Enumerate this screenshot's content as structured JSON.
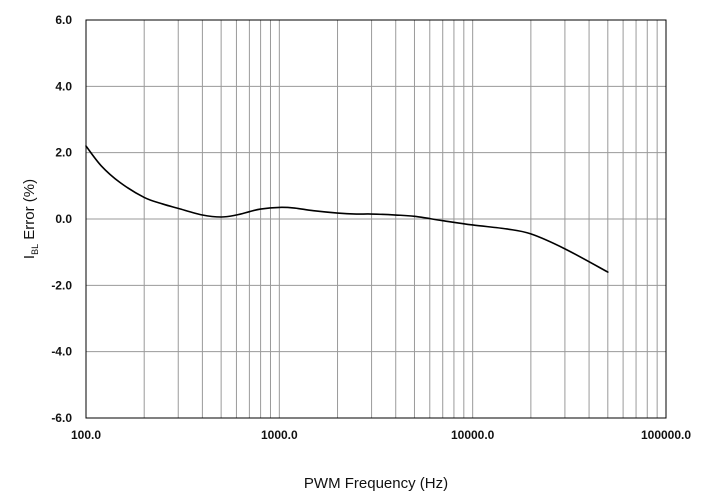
{
  "chart_data": {
    "type": "line",
    "title": "",
    "xlabel": "PWM Frequency (Hz)",
    "ylabel": {
      "symbol": "I",
      "subscript": "BL",
      "text": " Error (%)"
    },
    "x_scale": "log",
    "xlim": [
      100,
      100000
    ],
    "ylim": [
      -6,
      6
    ],
    "x_ticks": [
      100,
      1000,
      10000,
      100000
    ],
    "x_tick_labels": [
      "100.0",
      "1000.0",
      "10000.0",
      "100000.0"
    ],
    "y_ticks": [
      6,
      4,
      2,
      0,
      -2,
      -4,
      -6
    ],
    "y_tick_labels": [
      "6.0",
      "4.0",
      "2.0",
      "0.0",
      "-2.0",
      "-4.0",
      "-6.0"
    ],
    "grid": true,
    "legend": false,
    "colors": {
      "line": "#000000",
      "grid": "#9a9a9a",
      "frame": "#000000"
    },
    "series": [
      {
        "x": [
          100,
          120,
          150,
          200,
          250,
          300,
          400,
          500,
          600,
          700,
          800,
          1000,
          1200,
          1500,
          2000,
          2500,
          3000,
          4000,
          5000,
          7000,
          10000,
          15000,
          20000,
          30000,
          50000
        ],
        "y": [
          2.2,
          1.6,
          1.1,
          0.65,
          0.45,
          0.32,
          0.12,
          0.06,
          0.12,
          0.22,
          0.3,
          0.35,
          0.33,
          0.25,
          0.18,
          0.15,
          0.15,
          0.12,
          0.08,
          -0.05,
          -0.18,
          -0.3,
          -0.45,
          -0.9,
          -1.6
        ]
      }
    ]
  }
}
